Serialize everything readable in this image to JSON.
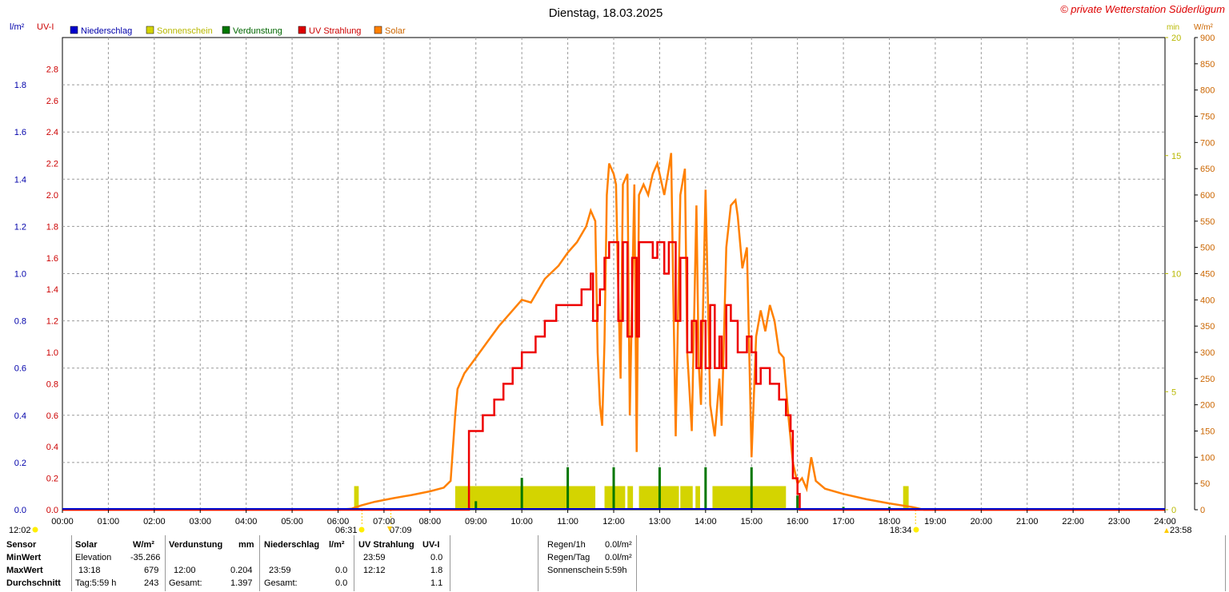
{
  "title": "Dienstag, 18.03.2025",
  "copyright": "© private Wetterstation Süderlügum",
  "axes": {
    "left1_unit": "l/m²",
    "left2_unit": "UV-I",
    "right1_unit": "min",
    "right2_unit": "W/m²"
  },
  "legend": [
    {
      "label": "Niederschlag",
      "color": "#0000cc"
    },
    {
      "label": "Sonnenschein",
      "color": "#d4d400"
    },
    {
      "label": "Verdunstung",
      "color": "#007700"
    },
    {
      "label": "UV Strahlung",
      "color": "#dd0000"
    },
    {
      "label": "Solar",
      "color": "#ff8000"
    }
  ],
  "markers": {
    "left_time": "12:02",
    "sunrise": "06:31",
    "dawn_mark": "07:09",
    "sunset": "18:34",
    "right_time": "23:58"
  },
  "chart_data": {
    "type": "line",
    "x_ticks": [
      "00:00",
      "01:00",
      "02:00",
      "03:00",
      "04:00",
      "05:00",
      "06:00",
      "07:00",
      "08:00",
      "09:00",
      "10:00",
      "11:00",
      "12:00",
      "13:00",
      "14:00",
      "15:00",
      "16:00",
      "17:00",
      "18:00",
      "19:00",
      "20:00",
      "21:00",
      "22:00",
      "23:00",
      "24:00"
    ],
    "xlim_hours": [
      0,
      24
    ],
    "y_niederschlag": {
      "ticks": [
        "0.0",
        "0.2",
        "0.4",
        "0.6",
        "0.8",
        "1.0",
        "1.2",
        "1.4",
        "1.6",
        "1.8"
      ],
      "ylim": [
        0,
        2.0
      ]
    },
    "y_uv": {
      "ticks": [
        "0.0",
        "0.2",
        "0.4",
        "0.6",
        "0.8",
        "1.0",
        "1.2",
        "1.4",
        "1.6",
        "1.8",
        "2.0",
        "2.2",
        "2.4",
        "2.6",
        "2.8"
      ],
      "ylim": [
        0,
        3.0
      ]
    },
    "y_sun_min": {
      "ticks": [
        "0",
        "5",
        "10",
        "15",
        "20"
      ],
      "ylim": [
        0,
        20
      ]
    },
    "y_solar": {
      "ticks": [
        "0",
        "50",
        "100",
        "150",
        "200",
        "250",
        "300",
        "350",
        "400",
        "450",
        "500",
        "550",
        "600",
        "650",
        "700",
        "750",
        "800",
        "850",
        "900"
      ],
      "ylim": [
        0,
        900
      ]
    },
    "series": [
      {
        "name": "Solar",
        "points": [
          [
            0,
            0
          ],
          [
            6.0,
            0
          ],
          [
            6.3,
            2
          ],
          [
            6.5,
            8
          ],
          [
            6.8,
            15
          ],
          [
            7.2,
            22
          ],
          [
            7.6,
            28
          ],
          [
            8.0,
            35
          ],
          [
            8.3,
            42
          ],
          [
            8.45,
            55
          ],
          [
            8.55,
            180
          ],
          [
            8.6,
            230
          ],
          [
            8.75,
            260
          ],
          [
            9.0,
            290
          ],
          [
            9.25,
            320
          ],
          [
            9.5,
            350
          ],
          [
            9.75,
            375
          ],
          [
            10.0,
            400
          ],
          [
            10.2,
            395
          ],
          [
            10.3,
            410
          ],
          [
            10.5,
            440
          ],
          [
            10.8,
            465
          ],
          [
            11.0,
            490
          ],
          [
            11.2,
            510
          ],
          [
            11.4,
            540
          ],
          [
            11.5,
            570
          ],
          [
            11.6,
            550
          ],
          [
            11.65,
            300
          ],
          [
            11.7,
            200
          ],
          [
            11.75,
            160
          ],
          [
            11.8,
            320
          ],
          [
            11.85,
            600
          ],
          [
            11.9,
            660
          ],
          [
            12.0,
            640
          ],
          [
            12.05,
            620
          ],
          [
            12.1,
            420
          ],
          [
            12.15,
            250
          ],
          [
            12.2,
            620
          ],
          [
            12.3,
            640
          ],
          [
            12.35,
            180
          ],
          [
            12.45,
            620
          ],
          [
            12.5,
            110
          ],
          [
            12.55,
            600
          ],
          [
            12.65,
            620
          ],
          [
            12.75,
            600
          ],
          [
            12.85,
            640
          ],
          [
            12.95,
            660
          ],
          [
            13.05,
            620
          ],
          [
            13.1,
            600
          ],
          [
            13.2,
            650
          ],
          [
            13.25,
            680
          ],
          [
            13.3,
            400
          ],
          [
            13.35,
            140
          ],
          [
            13.45,
            600
          ],
          [
            13.55,
            650
          ],
          [
            13.6,
            300
          ],
          [
            13.7,
            150
          ],
          [
            13.8,
            580
          ],
          [
            13.85,
            280
          ],
          [
            13.9,
            200
          ],
          [
            14.0,
            610
          ],
          [
            14.1,
            200
          ],
          [
            14.2,
            140
          ],
          [
            14.3,
            250
          ],
          [
            14.35,
            160
          ],
          [
            14.45,
            500
          ],
          [
            14.55,
            580
          ],
          [
            14.65,
            590
          ],
          [
            14.7,
            560
          ],
          [
            14.8,
            460
          ],
          [
            14.9,
            500
          ],
          [
            15.0,
            100
          ],
          [
            15.1,
            330
          ],
          [
            15.2,
            380
          ],
          [
            15.3,
            340
          ],
          [
            15.4,
            390
          ],
          [
            15.5,
            360
          ],
          [
            15.6,
            300
          ],
          [
            15.7,
            290
          ],
          [
            15.8,
            180
          ],
          [
            15.9,
            90
          ],
          [
            16.0,
            50
          ],
          [
            16.1,
            60
          ],
          [
            16.2,
            40
          ],
          [
            16.3,
            100
          ],
          [
            16.4,
            55
          ],
          [
            16.6,
            40
          ],
          [
            17.0,
            30
          ],
          [
            17.5,
            20
          ],
          [
            18.0,
            12
          ],
          [
            18.5,
            5
          ],
          [
            18.75,
            0
          ],
          [
            24,
            0
          ]
        ]
      },
      {
        "name": "UV Strahlung",
        "points": [
          [
            0,
            0
          ],
          [
            8.8,
            0
          ],
          [
            8.85,
            0.5
          ],
          [
            9.0,
            0.5
          ],
          [
            9.15,
            0.6
          ],
          [
            9.4,
            0.7
          ],
          [
            9.6,
            0.8
          ],
          [
            9.8,
            0.9
          ],
          [
            10.0,
            1.0
          ],
          [
            10.3,
            1.1
          ],
          [
            10.5,
            1.2
          ],
          [
            10.75,
            1.3
          ],
          [
            11.0,
            1.3
          ],
          [
            11.3,
            1.4
          ],
          [
            11.5,
            1.5
          ],
          [
            11.55,
            1.2
          ],
          [
            11.65,
            1.3
          ],
          [
            11.7,
            1.4
          ],
          [
            11.8,
            1.6
          ],
          [
            11.9,
            1.7
          ],
          [
            12.0,
            1.7
          ],
          [
            12.1,
            1.2
          ],
          [
            12.2,
            1.7
          ],
          [
            12.3,
            1.1
          ],
          [
            12.4,
            1.6
          ],
          [
            12.5,
            1.1
          ],
          [
            12.55,
            1.7
          ],
          [
            12.7,
            1.7
          ],
          [
            12.85,
            1.6
          ],
          [
            12.95,
            1.7
          ],
          [
            13.0,
            1.7
          ],
          [
            13.1,
            1.5
          ],
          [
            13.2,
            1.7
          ],
          [
            13.25,
            1.7
          ],
          [
            13.35,
            1.2
          ],
          [
            13.45,
            1.6
          ],
          [
            13.55,
            1.6
          ],
          [
            13.6,
            1.0
          ],
          [
            13.7,
            1.2
          ],
          [
            13.8,
            0.9
          ],
          [
            13.9,
            1.2
          ],
          [
            14.0,
            0.9
          ],
          [
            14.1,
            1.3
          ],
          [
            14.2,
            0.9
          ],
          [
            14.3,
            1.1
          ],
          [
            14.35,
            0.9
          ],
          [
            14.45,
            1.3
          ],
          [
            14.55,
            1.2
          ],
          [
            14.65,
            1.2
          ],
          [
            14.7,
            1.0
          ],
          [
            14.8,
            1.0
          ],
          [
            14.9,
            1.1
          ],
          [
            15.0,
            1.0
          ],
          [
            15.1,
            0.8
          ],
          [
            15.2,
            0.9
          ],
          [
            15.4,
            0.8
          ],
          [
            15.6,
            0.7
          ],
          [
            15.75,
            0.6
          ],
          [
            15.85,
            0.5
          ],
          [
            15.9,
            0.2
          ],
          [
            16.0,
            0.1
          ],
          [
            16.05,
            0
          ],
          [
            24,
            0
          ]
        ]
      },
      {
        "name": "Sonnenschein",
        "blocks": [
          [
            6.35,
            6.45
          ],
          [
            8.55,
            11.6
          ],
          [
            11.8,
            12.25
          ],
          [
            12.3,
            12.42
          ],
          [
            12.55,
            13.42
          ],
          [
            13.45,
            13.72
          ],
          [
            13.78,
            13.88
          ],
          [
            14.15,
            15.75
          ],
          [
            18.3,
            18.42
          ]
        ],
        "block_value_min": 1
      },
      {
        "name": "Verdunstung",
        "spikes": [
          [
            9.0,
            0.012
          ],
          [
            10.0,
            0.045
          ],
          [
            11.0,
            0.06
          ],
          [
            12.0,
            0.06
          ],
          [
            13.0,
            0.06
          ],
          [
            14.0,
            0.06
          ],
          [
            15.0,
            0.06
          ],
          [
            16.0,
            0.02
          ],
          [
            17.0,
            0.004
          ],
          [
            18.0,
            0.004
          ]
        ]
      },
      {
        "name": "Niederschlag",
        "values_total": 0.0
      }
    ]
  },
  "table": {
    "col1": {
      "header": "Sensor",
      "rows": [
        "MinWert",
        "MaxWert",
        "Durchschnitt"
      ]
    },
    "solar": {
      "header": "Solar",
      "unit": "W/m²",
      "rows": [
        [
          "Elevation",
          "-35.266"
        ],
        [
          "13:18",
          "679"
        ],
        [
          "Tag:5:59 h",
          "243"
        ]
      ]
    },
    "verdunstung": {
      "header": "Verdunstung",
      "unit": "mm",
      "rows": [
        [
          "",
          ""
        ],
        [
          "12:00",
          "0.204"
        ],
        [
          "Gesamt:",
          "1.397"
        ]
      ]
    },
    "niederschlag": {
      "header": "Niederschlag",
      "unit": "l/m²",
      "rows": [
        [
          "",
          ""
        ],
        [
          "23:59",
          "0.0"
        ],
        [
          "Gesamt:",
          "0.0"
        ]
      ]
    },
    "uv": {
      "header": "UV Strahlung",
      "unit": "UV-I",
      "rows": [
        [
          "23:59",
          "0.0"
        ],
        [
          "12:12",
          "1.8"
        ],
        [
          "",
          "1.1"
        ]
      ]
    },
    "rain": [
      {
        "label": "Regen/1h",
        "value": "0.0l/m²"
      },
      {
        "label": "Regen/Tag",
        "value": "0.0l/m²"
      },
      {
        "label": "Sonnenschein",
        "value": "5:59h"
      }
    ]
  }
}
